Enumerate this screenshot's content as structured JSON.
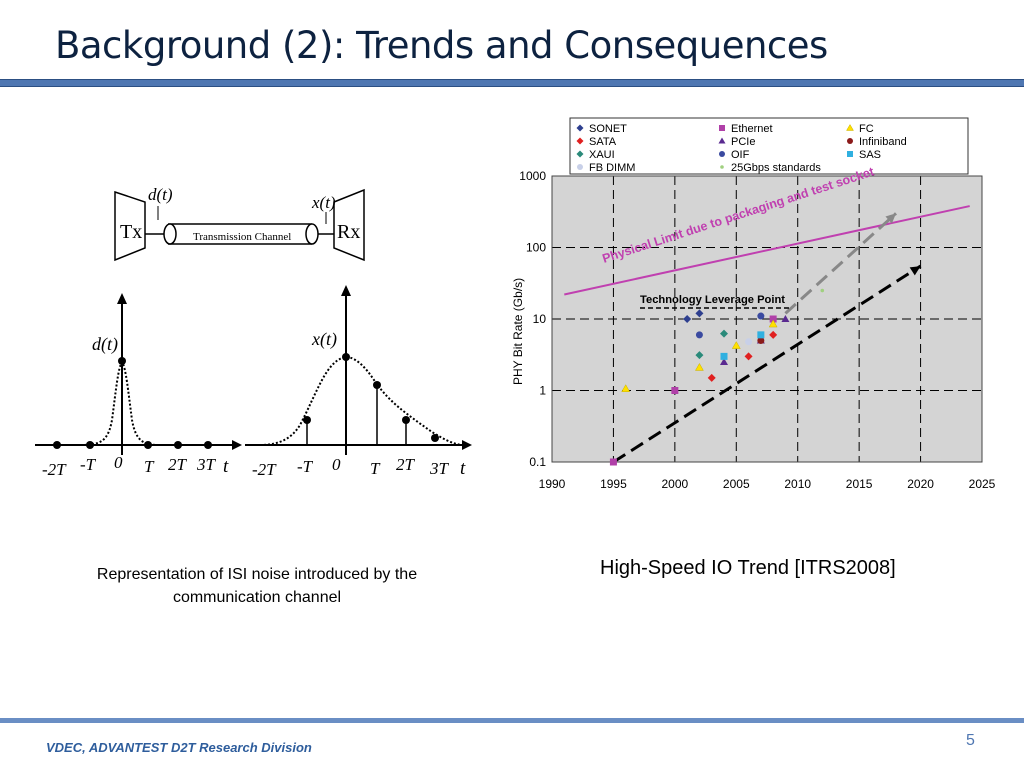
{
  "slide": {
    "title": "Background (2): Trends and Consequences",
    "footer": "VDEC, ADVANTEST D2T Research Division",
    "page_number": "5"
  },
  "isi_figure": {
    "caption": "Representation of ISI noise introduced by the communication channel",
    "tx_label": "Tx",
    "rx_label": "Rx",
    "channel_label": "Transmission Channel",
    "input_signal_label": "d(t)",
    "output_signal_label": "x(t)",
    "left_plot_ylabel": "d(t)",
    "right_plot_ylabel": "x(t)",
    "time_ticks": [
      "-2T",
      "-T",
      "0",
      "T",
      "2T",
      "3T"
    ],
    "time_axis_label": "t"
  },
  "chart_caption": "High-Speed IO Trend [ITRS2008]",
  "chart_data": {
    "type": "scatter",
    "xlabel": "",
    "ylabel": "PHY Bit Rate (Gb/s)",
    "x_ticks": [
      "1990",
      "1995",
      "2000",
      "2005",
      "2010",
      "2015",
      "2020",
      "2025"
    ],
    "y_ticks": [
      "0.1",
      "1",
      "10",
      "100",
      "1000"
    ],
    "xlim": [
      1990,
      2025
    ],
    "ylim": [
      0.1,
      1000
    ],
    "y_scale": "log",
    "grid": true,
    "legend_position": "top",
    "series": [
      {
        "name": "SONET",
        "marker": "diamond",
        "color": "#2e3f8f",
        "points": [
          [
            2001,
            10
          ],
          [
            2002,
            12
          ]
        ]
      },
      {
        "name": "Ethernet",
        "marker": "square",
        "color": "#b040a8",
        "points": [
          [
            1995,
            0.1
          ],
          [
            2000,
            1
          ],
          [
            2008,
            10
          ]
        ]
      },
      {
        "name": "FC",
        "marker": "triangle",
        "color": "#ffe000",
        "points": [
          [
            1996,
            1.06
          ],
          [
            2002,
            2.1
          ],
          [
            2005,
            4.25
          ],
          [
            2008,
            8.5
          ]
        ]
      },
      {
        "name": "SATA",
        "marker": "diamond",
        "color": "#e02020",
        "points": [
          [
            2003,
            1.5
          ],
          [
            2006,
            3
          ],
          [
            2008,
            6
          ]
        ]
      },
      {
        "name": "PCIe",
        "marker": "triangle",
        "color": "#5a2a90",
        "points": [
          [
            2004,
            2.5
          ],
          [
            2007,
            5
          ],
          [
            2009,
            10
          ]
        ]
      },
      {
        "name": "Infiniband",
        "marker": "circle",
        "color": "#8b1a1a",
        "points": [
          [
            2007,
            5
          ]
        ]
      },
      {
        "name": "XAUI",
        "marker": "diamond",
        "color": "#2a8a7a",
        "points": [
          [
            2002,
            3.125
          ],
          [
            2004,
            6.25
          ]
        ]
      },
      {
        "name": "OIF",
        "marker": "circle",
        "color": "#3a4aa0",
        "points": [
          [
            2002,
            6
          ],
          [
            2007,
            11
          ]
        ]
      },
      {
        "name": "SAS",
        "marker": "square",
        "color": "#30b0e0",
        "points": [
          [
            2004,
            3
          ],
          [
            2007,
            6
          ]
        ]
      },
      {
        "name": "FB DIMM",
        "marker": "circle",
        "color": "#c8d0e8",
        "points": [
          [
            2006,
            4.8
          ]
        ]
      },
      {
        "name": "25Gbps standards",
        "marker": "dot",
        "color": "#a0d080",
        "points": [
          [
            2012,
            25
          ]
        ]
      }
    ],
    "trend_lines": [
      {
        "name": "Physical Limit due to packaging and test socket",
        "color": "#c040b0",
        "from": [
          1991,
          22
        ],
        "to": [
          2024,
          380
        ]
      },
      {
        "name": "trend",
        "color": "#000000",
        "style": "dashed",
        "from": [
          1995,
          0.1
        ],
        "to": [
          2020,
          55
        ]
      },
      {
        "name": "25Gbps trend",
        "color": "#888888",
        "style": "dashed",
        "from": [
          2009,
          12
        ],
        "to": [
          2018,
          300
        ]
      }
    ],
    "annotations": [
      {
        "text": "Physical Limit due to packaging and test socket",
        "color": "#c040b0"
      },
      {
        "text": "Technology Leverage Point",
        "color": "#000000"
      }
    ],
    "leverage_point": [
      2009,
      13
    ]
  }
}
